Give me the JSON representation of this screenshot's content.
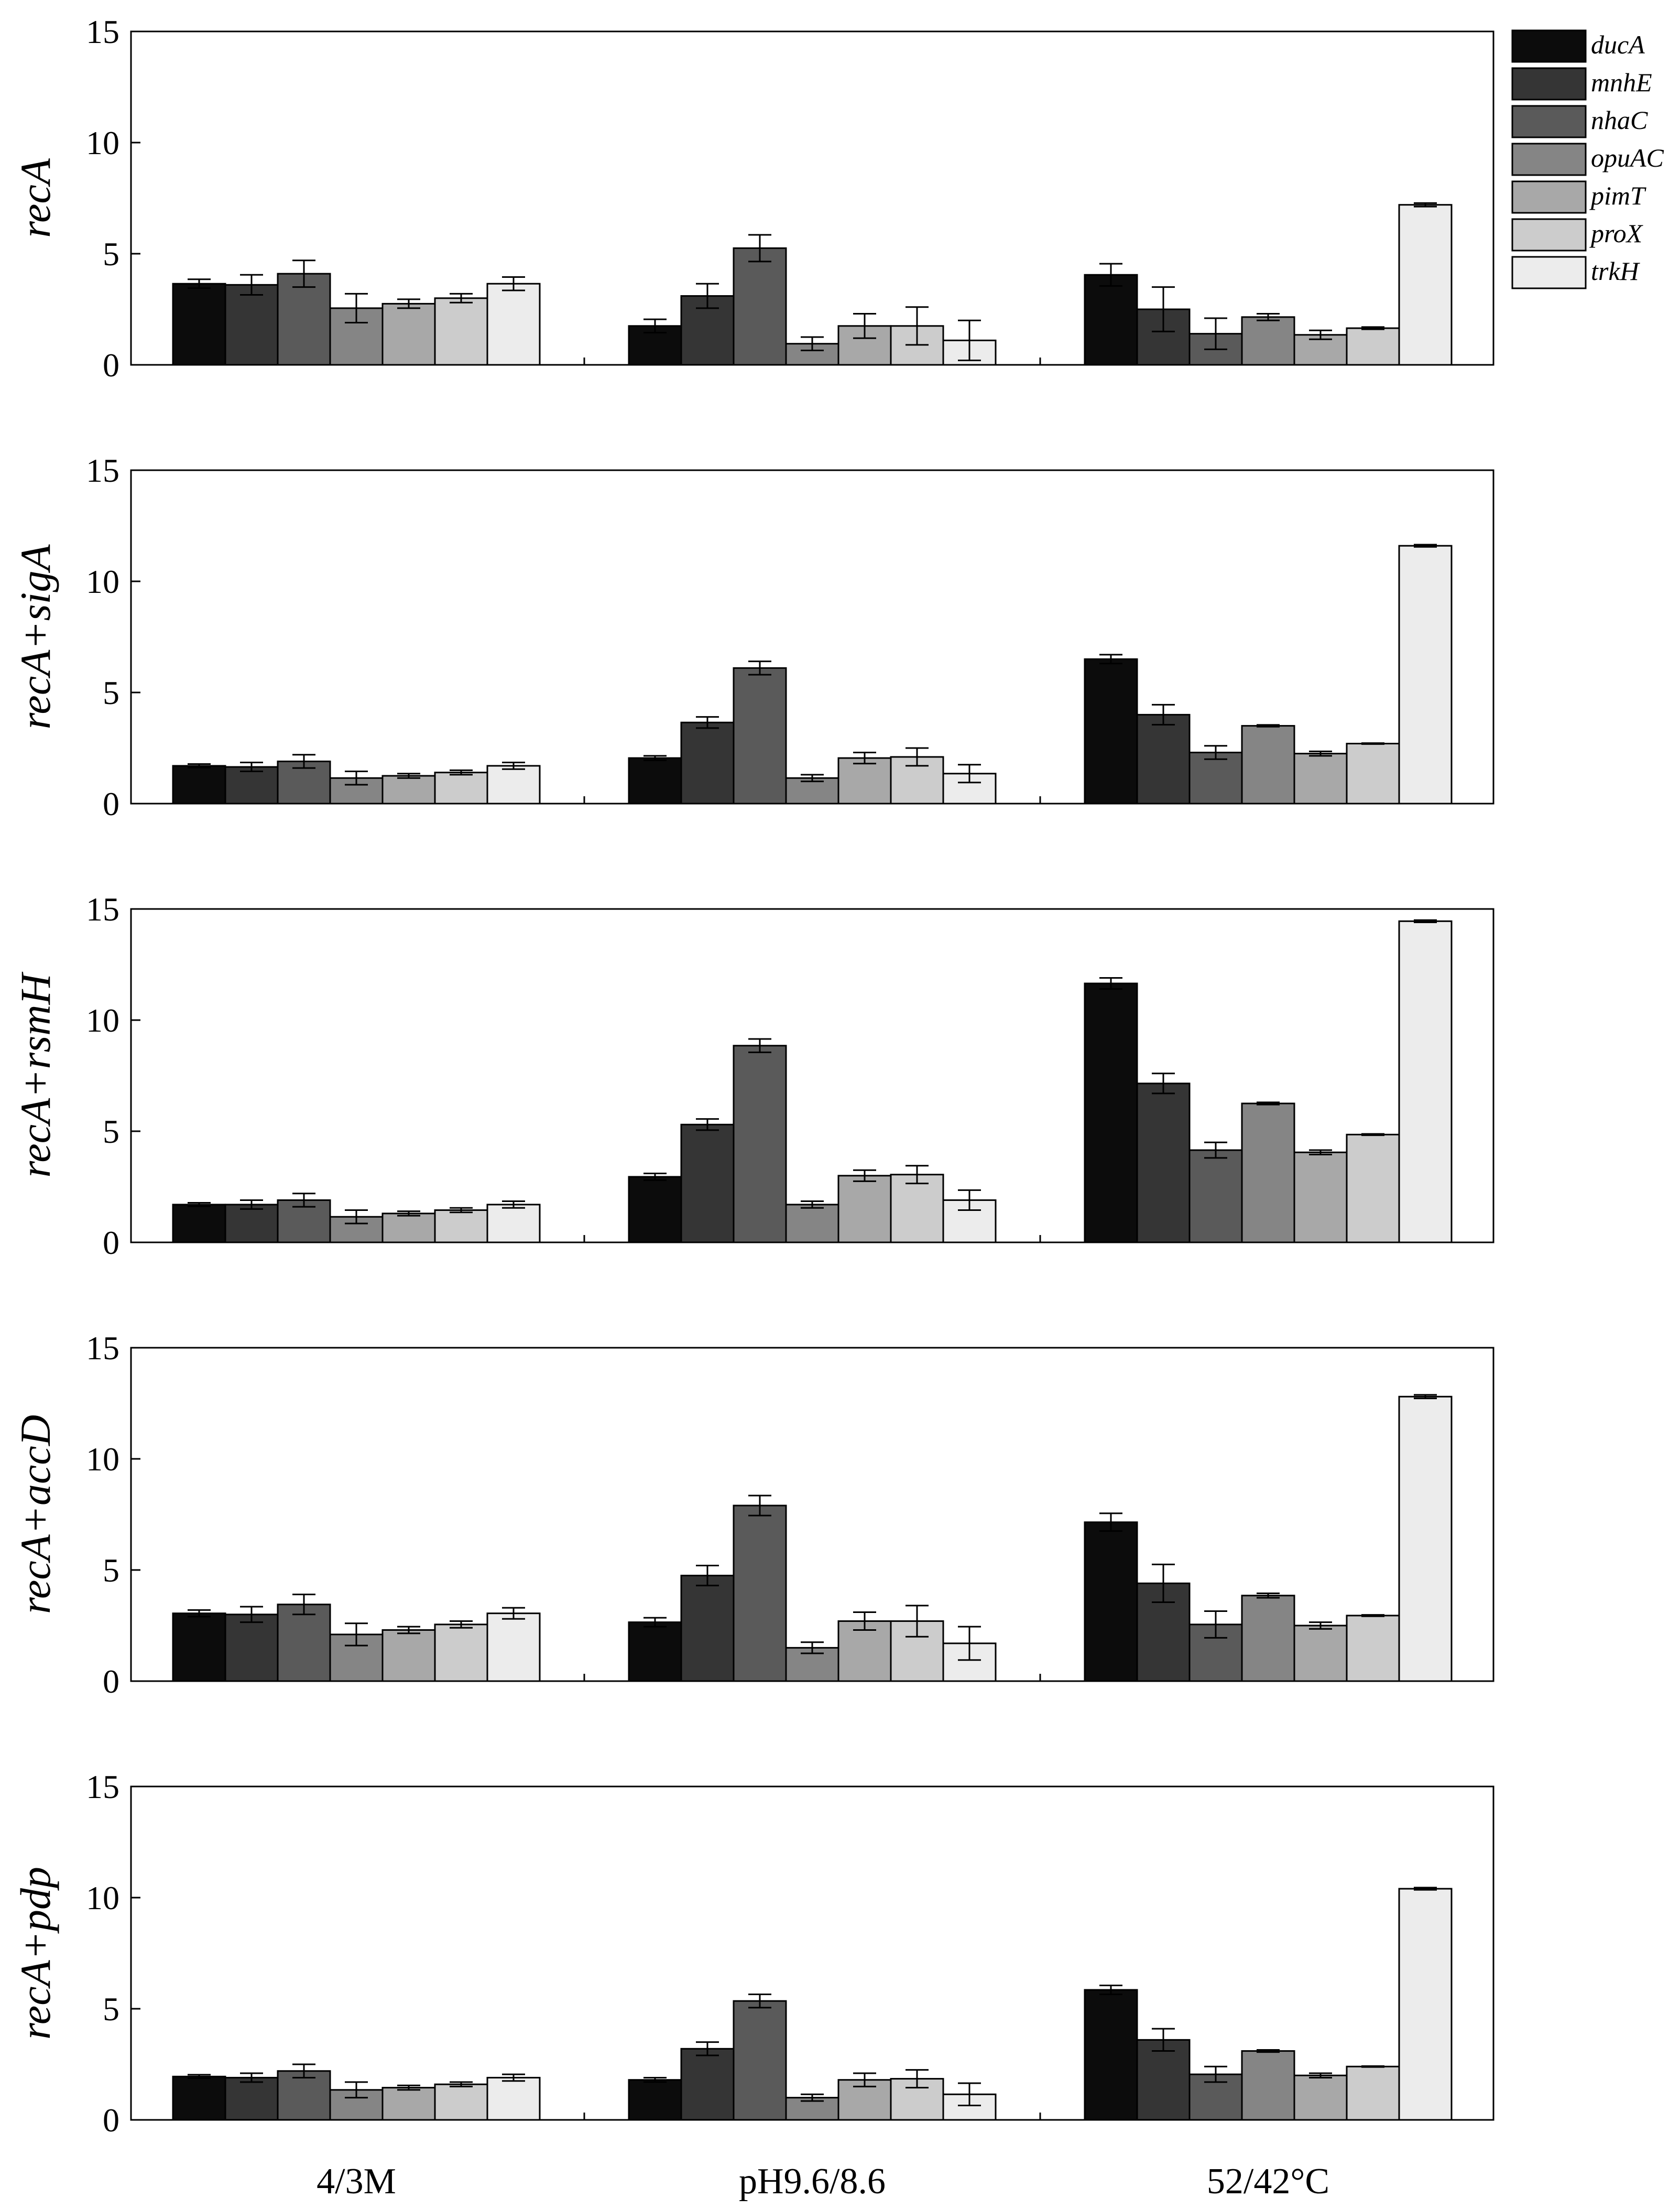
{
  "chart_data": {
    "type": "bar",
    "categories": [
      "4/3M",
      "pH9.6/8.6",
      "52/42°C"
    ],
    "legend": {
      "placement": "top-right",
      "entries": [
        "ducA",
        "mnhE",
        "nhaC",
        "opuAC",
        "pimT",
        "proX",
        "trkH"
      ],
      "colors": [
        "#0c0c0c",
        "#353535",
        "#5a5a5a",
        "#858585",
        "#a8a8a8",
        "#cccccc",
        "#ececec"
      ]
    },
    "ylim": [
      0,
      15
    ],
    "yticks": [
      "0",
      "5",
      "10",
      "15"
    ],
    "panels": [
      {
        "ylabel": "recA",
        "series": [
          {
            "name": "ducA",
            "values": [
              3.65,
              1.75,
              4.05
            ],
            "errors": [
              0.2,
              0.3,
              0.5
            ]
          },
          {
            "name": "mnhE",
            "values": [
              3.6,
              3.1,
              2.5
            ],
            "errors": [
              0.45,
              0.55,
              1.0
            ]
          },
          {
            "name": "nhaC",
            "values": [
              4.1,
              5.25,
              1.4
            ],
            "errors": [
              0.6,
              0.6,
              0.7
            ]
          },
          {
            "name": "opuAC",
            "values": [
              2.55,
              0.95,
              2.15
            ],
            "errors": [
              0.65,
              0.3,
              0.15
            ]
          },
          {
            "name": "pimT",
            "values": [
              2.75,
              1.75,
              1.35
            ],
            "errors": [
              0.2,
              0.55,
              0.2
            ]
          },
          {
            "name": "proX",
            "values": [
              3.0,
              1.75,
              1.65
            ],
            "errors": [
              0.2,
              0.85,
              0.05
            ]
          },
          {
            "name": "trkH",
            "values": [
              3.65,
              1.1,
              7.2
            ],
            "errors": [
              0.3,
              0.9,
              0.08
            ]
          }
        ]
      },
      {
        "ylabel": "recA+sigA",
        "series": [
          {
            "name": "ducA",
            "values": [
              1.7,
              2.05,
              6.5
            ],
            "errors": [
              0.08,
              0.1,
              0.2
            ]
          },
          {
            "name": "mnhE",
            "values": [
              1.65,
              3.65,
              4.0
            ],
            "errors": [
              0.2,
              0.25,
              0.45
            ]
          },
          {
            "name": "nhaC",
            "values": [
              1.9,
              6.1,
              2.3
            ],
            "errors": [
              0.3,
              0.3,
              0.3
            ]
          },
          {
            "name": "opuAC",
            "values": [
              1.15,
              1.15,
              3.5
            ],
            "errors": [
              0.3,
              0.15,
              0.04
            ]
          },
          {
            "name": "pimT",
            "values": [
              1.25,
              2.05,
              2.25
            ],
            "errors": [
              0.1,
              0.25,
              0.1
            ]
          },
          {
            "name": "proX",
            "values": [
              1.4,
              2.1,
              2.7
            ],
            "errors": [
              0.1,
              0.4,
              0.02
            ]
          },
          {
            "name": "trkH",
            "values": [
              1.7,
              1.35,
              11.6
            ],
            "errors": [
              0.15,
              0.4,
              0.05
            ]
          }
        ]
      },
      {
        "ylabel": "recA+rsmH",
        "series": [
          {
            "name": "ducA",
            "values": [
              1.7,
              2.95,
              11.65
            ],
            "errors": [
              0.08,
              0.15,
              0.25
            ]
          },
          {
            "name": "mnhE",
            "values": [
              1.7,
              5.3,
              7.15
            ],
            "errors": [
              0.2,
              0.25,
              0.45
            ]
          },
          {
            "name": "nhaC",
            "values": [
              1.9,
              8.85,
              4.15
            ],
            "errors": [
              0.3,
              0.3,
              0.35
            ]
          },
          {
            "name": "opuAC",
            "values": [
              1.15,
              1.7,
              6.25
            ],
            "errors": [
              0.3,
              0.15,
              0.05
            ]
          },
          {
            "name": "pimT",
            "values": [
              1.3,
              3.0,
              4.05
            ],
            "errors": [
              0.1,
              0.25,
              0.1
            ]
          },
          {
            "name": "proX",
            "values": [
              1.45,
              3.05,
              4.85
            ],
            "errors": [
              0.1,
              0.4,
              0.03
            ]
          },
          {
            "name": "trkH",
            "values": [
              1.7,
              1.9,
              14.45
            ],
            "errors": [
              0.15,
              0.45,
              0.05
            ]
          }
        ]
      },
      {
        "ylabel": "recA+accD",
        "series": [
          {
            "name": "ducA",
            "values": [
              3.05,
              2.65,
              7.15
            ],
            "errors": [
              0.15,
              0.2,
              0.4
            ]
          },
          {
            "name": "mnhE",
            "values": [
              3.0,
              4.75,
              4.4
            ],
            "errors": [
              0.35,
              0.45,
              0.85
            ]
          },
          {
            "name": "nhaC",
            "values": [
              3.45,
              7.9,
              2.55
            ],
            "errors": [
              0.45,
              0.45,
              0.6
            ]
          },
          {
            "name": "opuAC",
            "values": [
              2.1,
              1.5,
              3.85
            ],
            "errors": [
              0.5,
              0.25,
              0.1
            ]
          },
          {
            "name": "pimT",
            "values": [
              2.3,
              2.7,
              2.5
            ],
            "errors": [
              0.15,
              0.4,
              0.15
            ]
          },
          {
            "name": "proX",
            "values": [
              2.55,
              2.7,
              2.95
            ],
            "errors": [
              0.15,
              0.7,
              0.03
            ]
          },
          {
            "name": "trkH",
            "values": [
              3.05,
              1.7,
              12.8
            ],
            "errors": [
              0.25,
              0.75,
              0.08
            ]
          }
        ]
      },
      {
        "ylabel": "recA+pdp",
        "series": [
          {
            "name": "ducA",
            "values": [
              1.95,
              1.8,
              5.85
            ],
            "errors": [
              0.08,
              0.1,
              0.2
            ]
          },
          {
            "name": "mnhE",
            "values": [
              1.9,
              3.2,
              3.6
            ],
            "errors": [
              0.2,
              0.3,
              0.5
            ]
          },
          {
            "name": "nhaC",
            "values": [
              2.2,
              5.35,
              2.05
            ],
            "errors": [
              0.3,
              0.3,
              0.35
            ]
          },
          {
            "name": "opuAC",
            "values": [
              1.35,
              1.0,
              3.1
            ],
            "errors": [
              0.35,
              0.15,
              0.05
            ]
          },
          {
            "name": "pimT",
            "values": [
              1.45,
              1.8,
              2.0
            ],
            "errors": [
              0.1,
              0.3,
              0.1
            ]
          },
          {
            "name": "proX",
            "values": [
              1.6,
              1.85,
              2.4
            ],
            "errors": [
              0.1,
              0.4,
              0.02
            ]
          },
          {
            "name": "trkH",
            "values": [
              1.9,
              1.15,
              10.4
            ],
            "errors": [
              0.15,
              0.5,
              0.05
            ]
          }
        ]
      }
    ]
  }
}
